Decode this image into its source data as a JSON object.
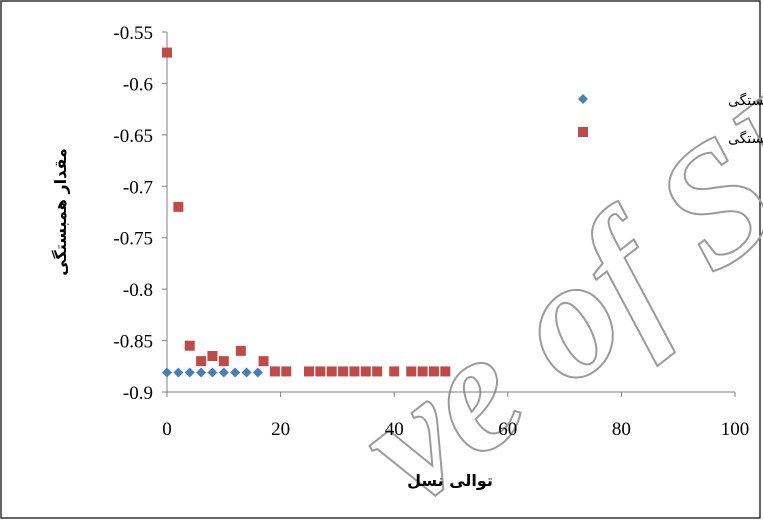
{
  "chart_data": {
    "type": "scatter",
    "xlabel": "توالی نسل",
    "ylabel": "مقدار همبستگی",
    "xlim": [
      0,
      100
    ],
    "ylim": [
      -0.9,
      -0.55
    ],
    "xticks": [
      "0",
      "20",
      "40",
      "60",
      "80",
      "100"
    ],
    "yticks": [
      "-0.55",
      "-0.6",
      "-0.65",
      "-0.7",
      "-0.75",
      "-0.8",
      "-0.85",
      "-0.9"
    ],
    "legend_position": "top-right",
    "grid": false,
    "series": [
      {
        "name": "بهترین همبستگی",
        "marker": "diamond",
        "color": "#4a7ebb",
        "x": [
          0,
          2,
          4,
          6,
          8,
          10,
          12,
          14,
          16
        ],
        "y": [
          -0.881,
          -0.881,
          -0.881,
          -0.881,
          -0.881,
          -0.881,
          -0.881,
          -0.881,
          -0.881
        ]
      },
      {
        "name": "میانگین همبستگی",
        "marker": "square",
        "color": "#be4b48",
        "x": [
          0,
          2,
          4,
          6,
          8,
          10,
          13,
          17,
          19,
          21,
          25,
          27,
          29,
          31,
          33,
          35,
          37,
          40,
          43,
          45,
          47,
          49
        ],
        "y": [
          -0.57,
          -0.72,
          -0.855,
          -0.87,
          -0.865,
          -0.87,
          -0.86,
          -0.87,
          -0.88,
          -0.88,
          -0.88,
          -0.88,
          -0.88,
          -0.88,
          -0.88,
          -0.88,
          -0.88,
          -0.88,
          -0.88,
          -0.88,
          -0.88,
          -0.88
        ]
      }
    ]
  },
  "watermark": {
    "text": "ve of SID"
  },
  "colors": {
    "frame": "#000000",
    "axis": "#808080",
    "watermark": "#9a9a9a"
  }
}
